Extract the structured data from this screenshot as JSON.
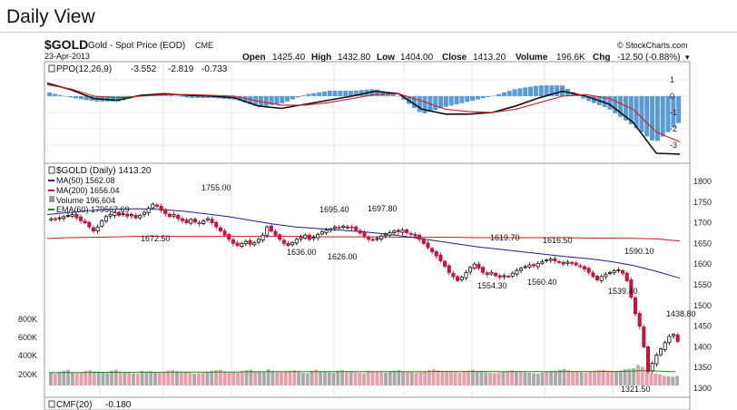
{
  "page_title": "Daily View",
  "header": {
    "symbol": "$GOLD",
    "name": "Gold - Spot Price (EOD)",
    "exchange": "CME",
    "date": "23-Apr-2013",
    "watermark": "© StockCharts.com",
    "ohlc": [
      {
        "label": "Open",
        "value": "1425.40"
      },
      {
        "label": "High",
        "value": "1432.80"
      },
      {
        "label": "Low",
        "value": "1404.00"
      },
      {
        "label": "Close",
        "value": "1413.20"
      },
      {
        "label": "Volume",
        "value": "196.6K"
      },
      {
        "label": "Chg",
        "value": "-12.50 (-0.88%)"
      }
    ]
  },
  "colors": {
    "up": "#111111",
    "down": "#c8143c",
    "ma50": "#1f1f8f",
    "ma200": "#c81e1e",
    "ema60": "#1a8a1a",
    "hist": "#5b9bd5",
    "vol_up": "#aaaaaa",
    "vol_down": "#e8a0a8"
  },
  "chart_data": [
    {
      "type": "line",
      "title": "PPO(12,26,9)",
      "legend": {
        "name": "PPO(12,26,9)",
        "values": [
          "-3.552",
          "-2.819",
          "-0.733"
        ]
      },
      "y_ticks": [
        "1",
        "0",
        "-1",
        "-2",
        "-3"
      ],
      "ylim": [
        -3.6,
        1.5
      ],
      "series": [
        {
          "name": "PPO",
          "color": "#111111",
          "values": [
            0.8,
            0.4,
            -0.15,
            -0.25,
            0.05,
            0.15,
            0.05,
            0.0,
            -0.1,
            -0.6,
            -0.75,
            -0.5,
            -0.25,
            0.0,
            0.3,
            0.15,
            -0.8,
            -1.1,
            -1.1,
            -1.0,
            -0.6,
            -0.1,
            0.3,
            0.0,
            -0.5,
            -1.6,
            -3.5,
            -3.55
          ]
        },
        {
          "name": "Signal",
          "color": "#cc2222",
          "values": [
            0.7,
            0.45,
            0.0,
            -0.1,
            0.0,
            0.1,
            0.1,
            0.05,
            0.0,
            -0.3,
            -0.55,
            -0.55,
            -0.4,
            -0.15,
            0.1,
            0.15,
            -0.3,
            -0.8,
            -0.95,
            -1.0,
            -0.8,
            -0.4,
            0.0,
            0.1,
            -0.15,
            -0.8,
            -2.2,
            -2.8
          ]
        }
      ]
    },
    {
      "type": "candlestick",
      "title": "$GOLD (Daily) 1413.20",
      "legend": [
        "MA(50) 1562.08",
        "MA(200) 1656.04",
        "Volume 196,604",
        "EMA(60) 179567.69"
      ],
      "y_ticks": [
        "1800",
        "1750",
        "1700",
        "1650",
        "1600",
        "1550",
        "1500",
        "1450",
        "1400",
        "1350",
        "1300"
      ],
      "ylim": [
        1300,
        1800
      ],
      "volume_ticks": [
        "800K",
        "600K",
        "400K",
        "200K"
      ],
      "annotations": [
        {
          "label": "1755.00",
          "value": 1755.0
        },
        {
          "label": "1672.50",
          "value": 1672.5
        },
        {
          "label": "1695.40",
          "value": 1695.4
        },
        {
          "label": "1697.80",
          "value": 1697.8
        },
        {
          "label": "1636.00",
          "value": 1636.0
        },
        {
          "label": "1626.00",
          "value": 1626.0
        },
        {
          "label": "1619.70",
          "value": 1619.7
        },
        {
          "label": "1616.50",
          "value": 1616.5
        },
        {
          "label": "1590.10",
          "value": 1590.1
        },
        {
          "label": "1554.30",
          "value": 1554.3
        },
        {
          "label": "1560.40",
          "value": 1560.4
        },
        {
          "label": "1539.40",
          "value": 1539.4
        },
        {
          "label": "1438.80",
          "value": 1438.8
        },
        {
          "label": "1321.50",
          "value": 1321.5
        }
      ],
      "price_path": [
        1710,
        1708,
        1712,
        1715,
        1718,
        1720,
        1712,
        1705,
        1700,
        1690,
        1680,
        1690,
        1705,
        1715,
        1720,
        1725,
        1718,
        1722,
        1716,
        1720,
        1712,
        1718,
        1725,
        1735,
        1745,
        1740,
        1730,
        1722,
        1715,
        1720,
        1710,
        1705,
        1700,
        1708,
        1702,
        1698,
        1705,
        1710,
        1700,
        1690,
        1680,
        1670,
        1660,
        1650,
        1645,
        1650,
        1655,
        1648,
        1652,
        1660,
        1670,
        1690,
        1680,
        1670,
        1660,
        1650,
        1645,
        1652,
        1660,
        1665,
        1670,
        1660,
        1665,
        1672,
        1678,
        1682,
        1685,
        1690,
        1688,
        1692,
        1690,
        1688,
        1682,
        1675,
        1668,
        1660,
        1658,
        1662,
        1668,
        1672,
        1676,
        1680,
        1678,
        1682,
        1676,
        1672,
        1668,
        1660,
        1650,
        1640,
        1630,
        1620,
        1608,
        1595,
        1580,
        1570,
        1560,
        1568,
        1580,
        1592,
        1600,
        1590,
        1580,
        1575,
        1580,
        1572,
        1568,
        1572,
        1570,
        1578,
        1585,
        1590,
        1594,
        1598,
        1596,
        1602,
        1606,
        1610,
        1612,
        1608,
        1604,
        1600,
        1605,
        1602,
        1598,
        1594,
        1588,
        1580,
        1570,
        1562,
        1570,
        1575,
        1580,
        1584,
        1586,
        1578,
        1560,
        1520,
        1480,
        1450,
        1400,
        1340,
        1360,
        1380,
        1395,
        1410,
        1425,
        1430,
        1413
      ],
      "ma50": [
        1720,
        1725,
        1730,
        1733,
        1734,
        1732,
        1728,
        1722,
        1715,
        1706,
        1697,
        1690,
        1686,
        1682,
        1678,
        1673,
        1666,
        1658,
        1650,
        1642,
        1636,
        1630,
        1624,
        1618,
        1613,
        1606,
        1596,
        1582,
        1566
      ],
      "ma200": [
        1662,
        1664,
        1665,
        1666,
        1667,
        1667,
        1667,
        1667,
        1667,
        1667,
        1667,
        1667,
        1666,
        1666,
        1666,
        1666,
        1665,
        1665,
        1665,
        1664,
        1664,
        1664,
        1664,
        1664,
        1663,
        1663,
        1662,
        1661,
        1656
      ],
      "volume": [
        260,
        240,
        280,
        300,
        320,
        260,
        250,
        270,
        300,
        310,
        290,
        280,
        260,
        250,
        300,
        320,
        280,
        270,
        260,
        250,
        240,
        300,
        280,
        290,
        270,
        260,
        280,
        300,
        310,
        290,
        280,
        270,
        260,
        240,
        250,
        260,
        280,
        300,
        310,
        320,
        290,
        280,
        270,
        260,
        300,
        310,
        320,
        290,
        280,
        270,
        330,
        300,
        280,
        270,
        290,
        300,
        310,
        280,
        260,
        250,
        300,
        320,
        290,
        280,
        270,
        260,
        300,
        310,
        290,
        280,
        270,
        260,
        250,
        300,
        280,
        290,
        270,
        260,
        280,
        300,
        310,
        290,
        280,
        270,
        260,
        270,
        290,
        310,
        330,
        310,
        300,
        290,
        280,
        270,
        260,
        280,
        300,
        320,
        290,
        280,
        270,
        260,
        250,
        260,
        280,
        300,
        310,
        290,
        280,
        270,
        260,
        250,
        240,
        260,
        280,
        290,
        300,
        320,
        330,
        310,
        290,
        280,
        270,
        260,
        280,
        300,
        310,
        320,
        300,
        290,
        280,
        300,
        330,
        340,
        350,
        420,
        380,
        280,
        250,
        240,
        230,
        200,
        190,
        180,
        196
      ]
    },
    {
      "type": "line",
      "title": "CMF(20)",
      "legend": {
        "name": "CMF(20)",
        "value": "-0.180"
      }
    }
  ]
}
